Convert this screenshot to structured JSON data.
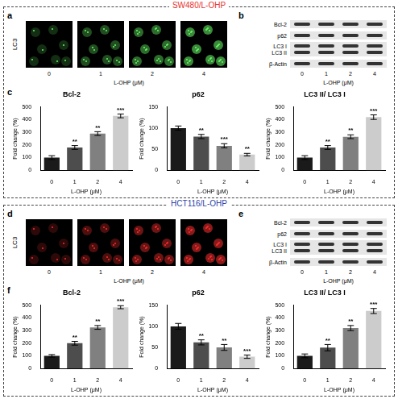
{
  "chart_data": [
    {
      "type": "bar",
      "title": "Bcl-2",
      "x_label": "L-OHP (μM)",
      "y_label": "Fold change (%)",
      "categories": [
        "0",
        "1",
        "2",
        "4"
      ],
      "values": [
        100,
        180,
        290,
        430
      ],
      "errors": [
        15,
        15,
        15,
        15
      ],
      "annotations": [
        {
          "category": "1",
          "text": "**"
        },
        {
          "category": "2",
          "text": "**"
        },
        {
          "category": "4",
          "text": "***"
        }
      ],
      "colors": [
        "#1a1a1a",
        "#4d4d4d",
        "#808080",
        "#cccccc"
      ],
      "ylim": [
        0,
        500
      ],
      "yticks": [
        0,
        100,
        200,
        300,
        400,
        500
      ],
      "grid": false
    },
    {
      "type": "bar",
      "title": "p62",
      "x_label": "L-OHP (μM)",
      "y_label": "Fold change (%)",
      "categories": [
        "0",
        "1",
        "2",
        "4"
      ],
      "values": [
        100,
        80,
        58,
        37
      ],
      "errors": [
        5,
        5,
        5,
        3
      ],
      "annotations": [
        {
          "category": "1",
          "text": "**"
        },
        {
          "category": "2",
          "text": "***"
        },
        {
          "category": "4",
          "text": "**"
        }
      ],
      "colors": [
        "#1a1a1a",
        "#4d4d4d",
        "#808080",
        "#cccccc"
      ],
      "ylim": [
        0,
        150
      ],
      "yticks": [
        0,
        50,
        100,
        150
      ],
      "grid": false
    },
    {
      "type": "bar",
      "title": "LC3 II/ LC3 I",
      "x_label": "L-OHP (μM)",
      "y_label": "Fold change (%)",
      "categories": [
        "0",
        "1",
        "2",
        "4"
      ],
      "values": [
        100,
        180,
        265,
        420
      ],
      "errors": [
        15,
        15,
        15,
        18
      ],
      "annotations": [
        {
          "category": "1",
          "text": "**"
        },
        {
          "category": "2",
          "text": "**"
        },
        {
          "category": "4",
          "text": "***"
        }
      ],
      "colors": [
        "#1a1a1a",
        "#4d4d4d",
        "#808080",
        "#cccccc"
      ],
      "ylim": [
        0,
        500
      ],
      "yticks": [
        0,
        100,
        200,
        300,
        400,
        500
      ],
      "grid": false
    },
    {
      "type": "bar",
      "title": "Bcl-2",
      "x_label": "L-OHP (μM)",
      "y_label": "Fold change (%)",
      "categories": [
        "0",
        "1",
        "2",
        "4"
      ],
      "values": [
        100,
        200,
        325,
        485
      ],
      "errors": [
        10,
        15,
        15,
        12
      ],
      "annotations": [
        {
          "category": "1",
          "text": "**"
        },
        {
          "category": "2",
          "text": "**"
        },
        {
          "category": "4",
          "text": "***"
        }
      ],
      "colors": [
        "#1a1a1a",
        "#4d4d4d",
        "#808080",
        "#cccccc"
      ],
      "ylim": [
        0,
        500
      ],
      "yticks": [
        0,
        100,
        200,
        300,
        400,
        500
      ],
      "grid": false
    },
    {
      "type": "bar",
      "title": "p62",
      "x_label": "L-OHP (μM)",
      "y_label": "Fold change (%)",
      "categories": [
        "0",
        "1",
        "2",
        "4"
      ],
      "values": [
        100,
        62,
        50,
        28
      ],
      "errors": [
        7,
        6,
        7,
        4
      ],
      "annotations": [
        {
          "category": "1",
          "text": "**"
        },
        {
          "category": "2",
          "text": "**"
        },
        {
          "category": "4",
          "text": "***"
        }
      ],
      "colors": [
        "#1a1a1a",
        "#4d4d4d",
        "#808080",
        "#cccccc"
      ],
      "ylim": [
        0,
        150
      ],
      "yticks": [
        0,
        50,
        100,
        150
      ],
      "grid": false
    },
    {
      "type": "bar",
      "title": "LC3 II/ LC3 I",
      "x_label": "L-OHP (μM)",
      "y_label": "Fold change (%)",
      "categories": [
        "0",
        "1",
        "2",
        "4"
      ],
      "values": [
        100,
        165,
        320,
        455
      ],
      "errors": [
        15,
        25,
        20,
        20
      ],
      "annotations": [
        {
          "category": "1",
          "text": "**"
        },
        {
          "category": "2",
          "text": "**"
        },
        {
          "category": "4",
          "text": "***"
        }
      ],
      "colors": [
        "#1a1a1a",
        "#4d4d4d",
        "#808080",
        "#cccccc"
      ],
      "ylim": [
        0,
        500
      ],
      "yticks": [
        0,
        100,
        200,
        300,
        400,
        500
      ],
      "grid": false
    }
  ],
  "figure": {
    "groups": [
      {
        "title": "SW480/L-OHP",
        "color": "#e8322e",
        "image_panel": {
          "label": "a",
          "stain": "LC3",
          "stain_color": "#6cff6c",
          "x_label": "L-OHP (μM)",
          "doses": [
            0,
            1,
            2,
            4
          ]
        },
        "blot_panel": {
          "label": "b",
          "bands": [
            "Bcl-2",
            "p62",
            "LC3 I",
            "LC3 II",
            "β-Actin"
          ],
          "x_label": "L-OHP (μM)",
          "doses": [
            0,
            1,
            2,
            4
          ]
        },
        "chart_panel": {
          "label": "c"
        }
      },
      {
        "title": "HCT116/L-OHP",
        "color": "#2e3fa8",
        "image_panel": {
          "label": "d",
          "stain": "LC3",
          "stain_color": "#ff3030",
          "x_label": "L-OHP (μM)",
          "doses": [
            0,
            1,
            2,
            4
          ]
        },
        "blot_panel": {
          "label": "e",
          "bands": [
            "Bcl-2",
            "p62",
            "LC3 I",
            "LC3 II",
            "β-Actin"
          ],
          "x_label": "L-OHP (μM)",
          "doses": [
            0,
            1,
            2,
            4
          ]
        },
        "chart_panel": {
          "label": "f"
        }
      }
    ]
  }
}
